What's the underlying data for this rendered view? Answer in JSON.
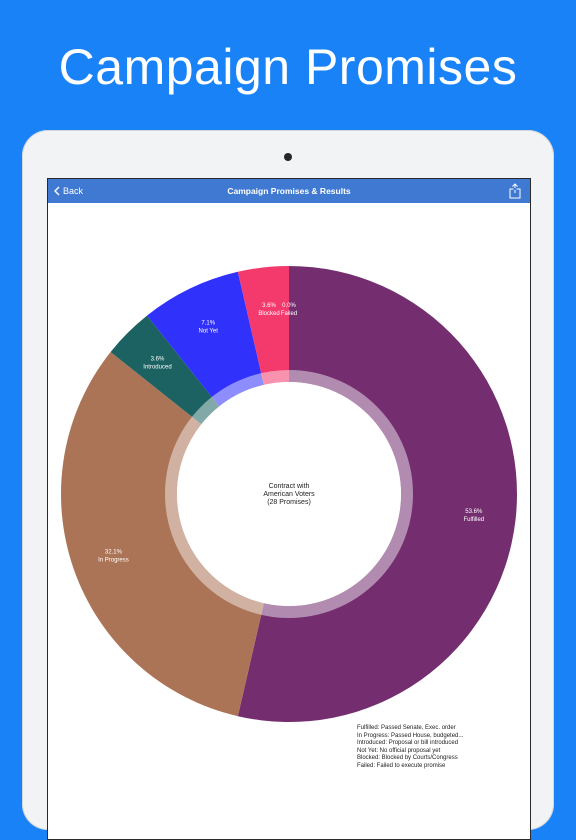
{
  "headline": "Campaign Promises",
  "navbar": {
    "back_label": "Back",
    "title": "Campaign Promises & Results",
    "back_icon": "chevron-left-icon",
    "share_icon": "share-icon"
  },
  "chart_data": {
    "type": "pie",
    "center_label": [
      "Contract with",
      "American Voters",
      "(28 Promises)"
    ],
    "slices": [
      {
        "label": "Fulfilled",
        "value": 53.6,
        "pct_text": "53.6%",
        "color": "#742e70"
      },
      {
        "label": "In Progress",
        "value": 32.1,
        "pct_text": "32.1%",
        "color": "#ac7456"
      },
      {
        "label": "Introduced",
        "value": 3.6,
        "pct_text": "3.6%",
        "color": "#1c6262"
      },
      {
        "label": "Not Yet",
        "value": 7.1,
        "pct_text": "7.1%",
        "color": "#3131fc"
      },
      {
        "label": "Blocked",
        "value": 3.6,
        "pct_text": "3.6%",
        "color": "#f43a6d"
      },
      {
        "label": "Failed",
        "value": 0.0,
        "pct_text": "0.0%",
        "color": "#7b7b7b"
      }
    ]
  },
  "legend": [
    "Fulfilled: Passed Senate, Exec. order",
    "In Progress: Passed House, budgeted...",
    "Introduced: Proposal or bill introduced",
    "Not Yet: No official proposal yet",
    "Blocked: Blocked by Courts/Congress",
    "Failed: Failed to execute promise"
  ],
  "colors": {
    "background": "#1a82f7",
    "navbar": "#3f79d1"
  }
}
